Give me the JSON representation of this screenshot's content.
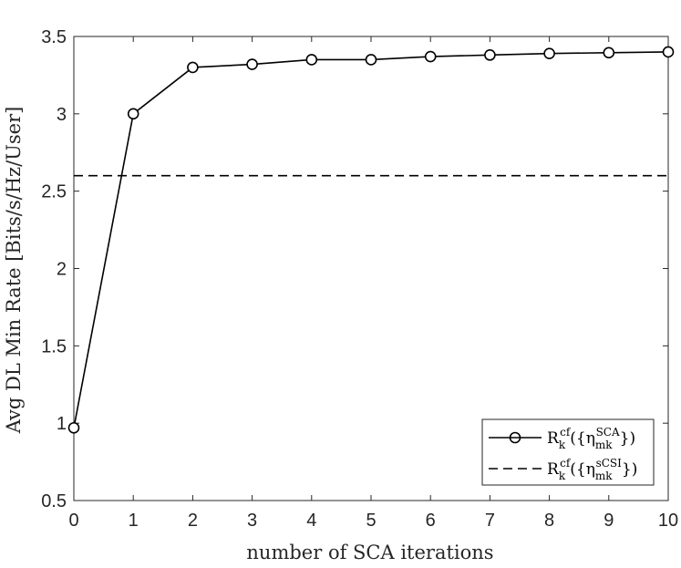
{
  "chart_data": {
    "type": "line",
    "xlabel": "number of SCA iterations",
    "ylabel": "Avg DL Min Rate [Bits/s/Hz/User]",
    "xlim": [
      0,
      10
    ],
    "ylim": [
      0.5,
      3.5
    ],
    "x_ticks": [
      0,
      1,
      2,
      3,
      4,
      5,
      6,
      7,
      8,
      9,
      10
    ],
    "y_ticks": [
      0.5,
      1,
      1.5,
      2,
      2.5,
      3,
      3.5
    ],
    "x_tick_labels": [
      "0",
      "1",
      "2",
      "3",
      "4",
      "5",
      "6",
      "7",
      "8",
      "9",
      "10"
    ],
    "y_tick_labels": [
      "0.5",
      "1",
      "1.5",
      "2",
      "2.5",
      "3",
      "3.5"
    ],
    "grid": false,
    "legend_position": "bottom-right",
    "series": [
      {
        "legend_label": "R_k^cf({η_mk^SCA})",
        "style": "solid-circle-markers",
        "color": "#000000",
        "x": [
          0,
          1,
          2,
          3,
          4,
          5,
          6,
          7,
          8,
          9,
          10
        ],
        "y": [
          0.97,
          3.0,
          3.3,
          3.32,
          3.35,
          3.35,
          3.37,
          3.38,
          3.39,
          3.395,
          3.4
        ]
      },
      {
        "legend_label": "R_k^cf({η_mk^sCSI})",
        "style": "dashed",
        "color": "#000000",
        "x": [
          0,
          10
        ],
        "y": [
          2.6,
          2.6
        ]
      }
    ]
  }
}
